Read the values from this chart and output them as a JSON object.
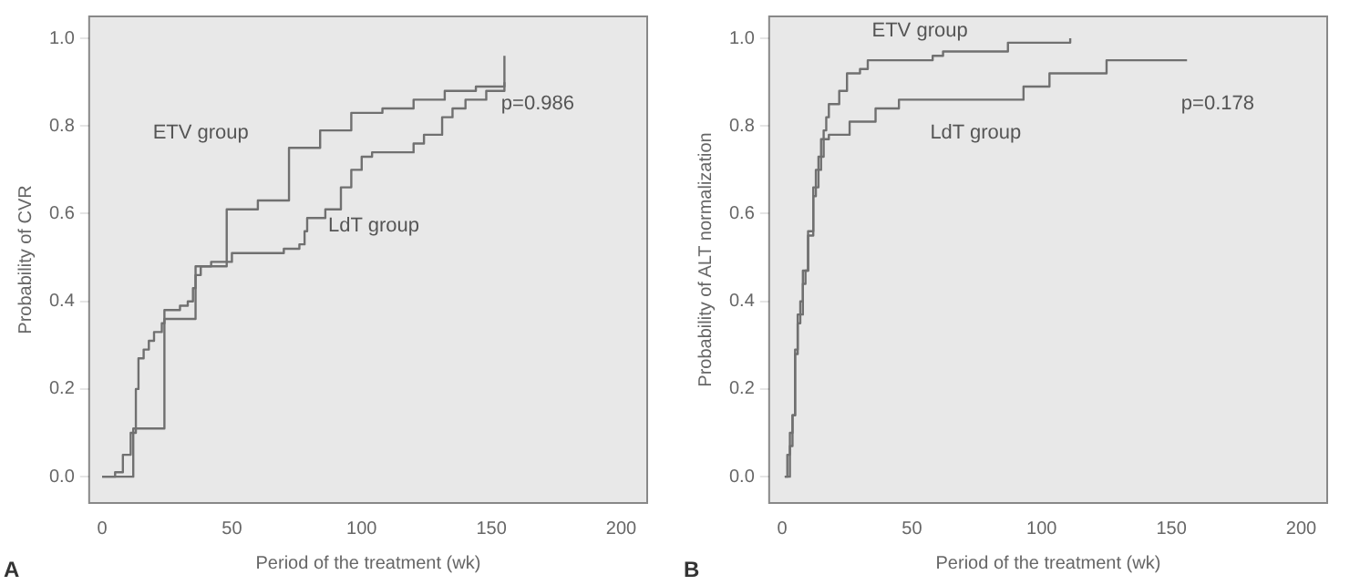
{
  "chart_data": [
    {
      "type": "step",
      "xlabel": "Period of the treatment (wk)",
      "ylabel": "Probability of CVR",
      "xlim": [
        -5,
        210
      ],
      "xticks": [
        0,
        50,
        100,
        150,
        200
      ],
      "ylim": [
        -0.06,
        1.05
      ],
      "yticks": [
        {
          "value": 0,
          "label": "0.0"
        },
        {
          "value": 0.2,
          "label": "0.2"
        },
        {
          "value": 0.4,
          "label": "0.4"
        },
        {
          "value": 0.6,
          "label": "0.6"
        },
        {
          "value": 0.8,
          "label": "0.8"
        },
        {
          "value": 1,
          "label": "1.0"
        }
      ],
      "grid": false,
      "legend": false,
      "series": [
        {
          "name": "ETV group",
          "color": "#707070",
          "x": [
            0,
            12,
            24,
            36,
            48,
            60,
            72,
            84,
            96,
            108,
            120,
            132,
            144,
            155,
            155
          ],
          "values": [
            0,
            0.11,
            0.36,
            0.48,
            0.61,
            0.63,
            0.75,
            0.79,
            0.83,
            0.84,
            0.86,
            0.88,
            0.89,
            0.9,
            0.96
          ]
        },
        {
          "name": "LdT group",
          "color": "#707070",
          "x": [
            0,
            5,
            8,
            11,
            13,
            14,
            16,
            18,
            20,
            23,
            24,
            30,
            33,
            35,
            36,
            38,
            42,
            50,
            70,
            76,
            78,
            79,
            86,
            92,
            96,
            100,
            104,
            120,
            124,
            131,
            135,
            140,
            148,
            155
          ],
          "values": [
            0,
            0.01,
            0.05,
            0.1,
            0.2,
            0.27,
            0.29,
            0.31,
            0.33,
            0.35,
            0.38,
            0.39,
            0.4,
            0.43,
            0.46,
            0.48,
            0.49,
            0.51,
            0.52,
            0.53,
            0.56,
            0.59,
            0.61,
            0.66,
            0.7,
            0.73,
            0.74,
            0.76,
            0.78,
            0.82,
            0.84,
            0.86,
            0.88,
            0.9
          ]
        }
      ],
      "annotations": [
        "p=0.986",
        "A"
      ]
    },
    {
      "type": "step",
      "xlabel": "Period of the treatment (wk)",
      "ylabel": "Probability of ALT normalization",
      "xlim": [
        -5,
        210
      ],
      "xticks": [
        0,
        50,
        100,
        150,
        200
      ],
      "ylim": [
        -0.06,
        1.05
      ],
      "yticks": [
        {
          "value": 0,
          "label": "0.0"
        },
        {
          "value": 0.2,
          "label": "0.2"
        },
        {
          "value": 0.4,
          "label": "0.4"
        },
        {
          "value": 0.6,
          "label": "0.6"
        },
        {
          "value": 0.8,
          "label": "0.8"
        },
        {
          "value": 1,
          "label": "1.0"
        }
      ],
      "grid": false,
      "legend": false,
      "series": [
        {
          "name": "ETV group",
          "color": "#707070",
          "x": [
            1,
            2,
            3,
            4,
            5,
            6,
            7,
            8,
            9,
            10,
            12,
            13,
            15,
            16,
            17,
            18,
            22,
            25,
            30,
            33,
            58,
            62,
            87,
            111
          ],
          "values": [
            0,
            0.05,
            0.1,
            0.14,
            0.29,
            0.35,
            0.4,
            0.44,
            0.47,
            0.56,
            0.64,
            0.7,
            0.77,
            0.79,
            0.82,
            0.85,
            0.88,
            0.92,
            0.93,
            0.95,
            0.96,
            0.97,
            0.99,
            1.0
          ]
        },
        {
          "name": "LdT group",
          "color": "#707070",
          "x": [
            1,
            3,
            4,
            5,
            6,
            8,
            10,
            12,
            14,
            16,
            18,
            26,
            36,
            45,
            93,
            103,
            125,
            156
          ],
          "values": [
            0,
            0.07,
            0.14,
            0.28,
            0.37,
            0.47,
            0.55,
            0.66,
            0.73,
            0.77,
            0.78,
            0.81,
            0.84,
            0.86,
            0.89,
            0.92,
            0.95,
            0.95
          ]
        }
      ],
      "annotations": [
        "p=0.178",
        "B"
      ]
    }
  ]
}
